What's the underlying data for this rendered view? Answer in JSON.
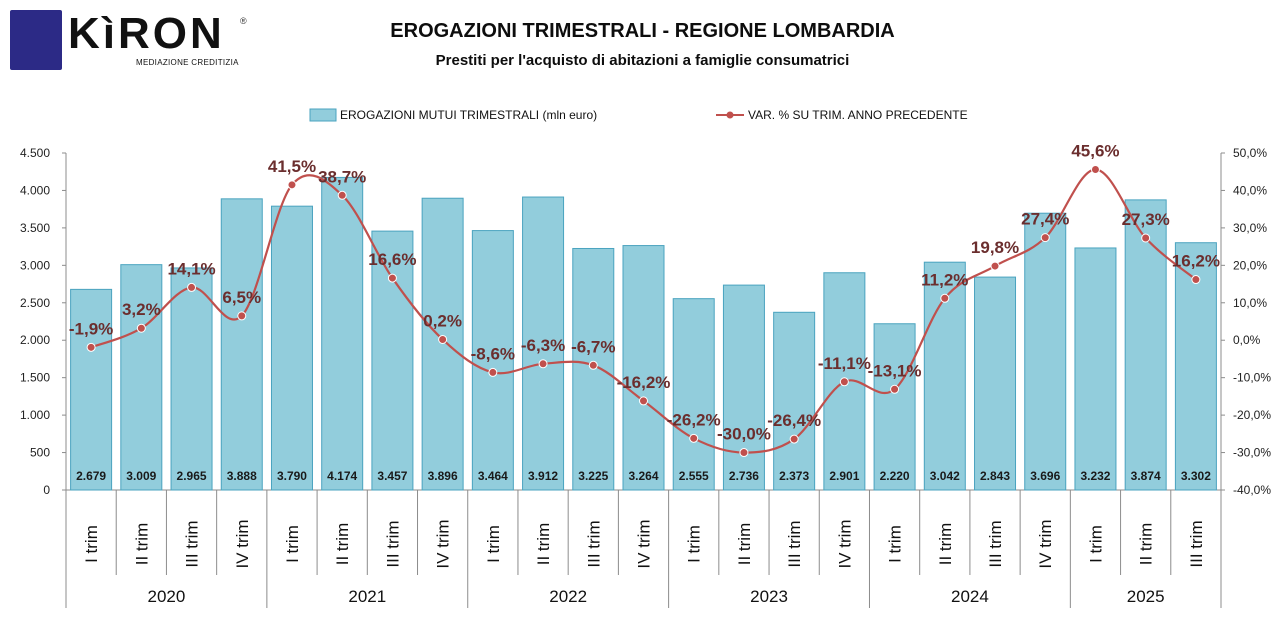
{
  "header": {
    "logo_name": "KìRON",
    "logo_reg": "®",
    "logo_sub": "MEDIAZIONE CREDITIZIA",
    "title": "EROGAZIONI TRIMESTRALI - REGIONE LOMBARDIA",
    "subtitle": "Prestiti per l'acquisto di abitazioni a famiglie consumatrici"
  },
  "colors": {
    "bar_fill": "#92cddc",
    "bar_stroke": "#4aa3bf",
    "line": "#c0504d",
    "marker": "#c0504d",
    "line_label": "#6b2e2e",
    "axis": "#8c8c8c"
  },
  "chart_data": {
    "type": "bar",
    "title": "EROGAZIONI TRIMESTRALI - REGIONE LOMBARDIA",
    "subtitle": "Prestiti per l'acquisto di abitazioni a famiglie consumatrici",
    "legend_position": "top",
    "grid": false,
    "categories": [
      "I trim",
      "II trim",
      "III trim",
      "IV trim",
      "I trim",
      "II trim",
      "III trim",
      "IV trim",
      "I trim",
      "II trim",
      "III trim",
      "IV trim",
      "I trim",
      "II trim",
      "III trim",
      "IV trim",
      "I trim",
      "II trim",
      "III trim",
      "IV trim",
      "I trim",
      "II trim",
      "III trim"
    ],
    "groups": [
      {
        "label": "2020",
        "count": 4
      },
      {
        "label": "2021",
        "count": 4
      },
      {
        "label": "2022",
        "count": 4
      },
      {
        "label": "2023",
        "count": 4
      },
      {
        "label": "2024",
        "count": 4
      },
      {
        "label": "2025",
        "count": 3
      }
    ],
    "series": [
      {
        "name": "EROGAZIONI MUTUI TRIMESTRALI (mln euro)",
        "type": "bar",
        "axis": "left",
        "values": [
          2679,
          3009,
          2965,
          3888,
          3790,
          4174,
          3457,
          3896,
          3464,
          3912,
          3225,
          3264,
          2555,
          2736,
          2373,
          2901,
          2220,
          3042,
          2843,
          3696,
          3232,
          3874,
          3302
        ],
        "labels": [
          "2.679",
          "3.009",
          "2.965",
          "3.888",
          "3.790",
          "4.174",
          "3.457",
          "3.896",
          "3.464",
          "3.912",
          "3.225",
          "3.264",
          "2.555",
          "2.736",
          "2.373",
          "2.901",
          "2.220",
          "3.042",
          "2.843",
          "3.696",
          "3.232",
          "3.874",
          "3.302"
        ]
      },
      {
        "name": "VAR. % SU TRIM. ANNO PRECEDENTE",
        "type": "line",
        "axis": "right",
        "values": [
          -1.9,
          3.2,
          14.1,
          6.5,
          41.5,
          38.7,
          16.6,
          0.2,
          -8.6,
          -6.3,
          -6.7,
          -16.2,
          -26.2,
          -30.0,
          -26.4,
          -11.1,
          -13.1,
          11.2,
          19.8,
          27.4,
          45.6,
          27.3,
          16.2
        ],
        "labels": [
          "-1,9%",
          "3,2%",
          "14,1%",
          "6,5%",
          "41,5%",
          "38,7%",
          "16,6%",
          "0,2%",
          "-8,6%",
          "-6,3%",
          "-6,7%",
          "-16,2%",
          "-26,2%",
          "-30,0%",
          "-26,4%",
          "-11,1%",
          "-13,1%",
          "11,2%",
          "19,8%",
          "27,4%",
          "45,6%",
          "27,3%",
          "16,2%"
        ]
      }
    ],
    "y_left": {
      "ylim": [
        0,
        4500
      ],
      "ticks": [
        0,
        500,
        1000,
        1500,
        2000,
        2500,
        3000,
        3500,
        4000,
        4500
      ],
      "tick_labels": [
        "0",
        "500",
        "1.000",
        "1.500",
        "2.000",
        "2.500",
        "3.000",
        "3.500",
        "4.000",
        "4.500"
      ]
    },
    "y_right": {
      "ylim": [
        -40,
        50
      ],
      "ticks": [
        -40,
        -30,
        -20,
        -10,
        0,
        10,
        20,
        30,
        40,
        50
      ],
      "tick_labels": [
        "-40,0%",
        "-30,0%",
        "-20,0%",
        "-10,0%",
        "0,0%",
        "10,0%",
        "20,0%",
        "30,0%",
        "40,0%",
        "50,0%"
      ]
    }
  }
}
